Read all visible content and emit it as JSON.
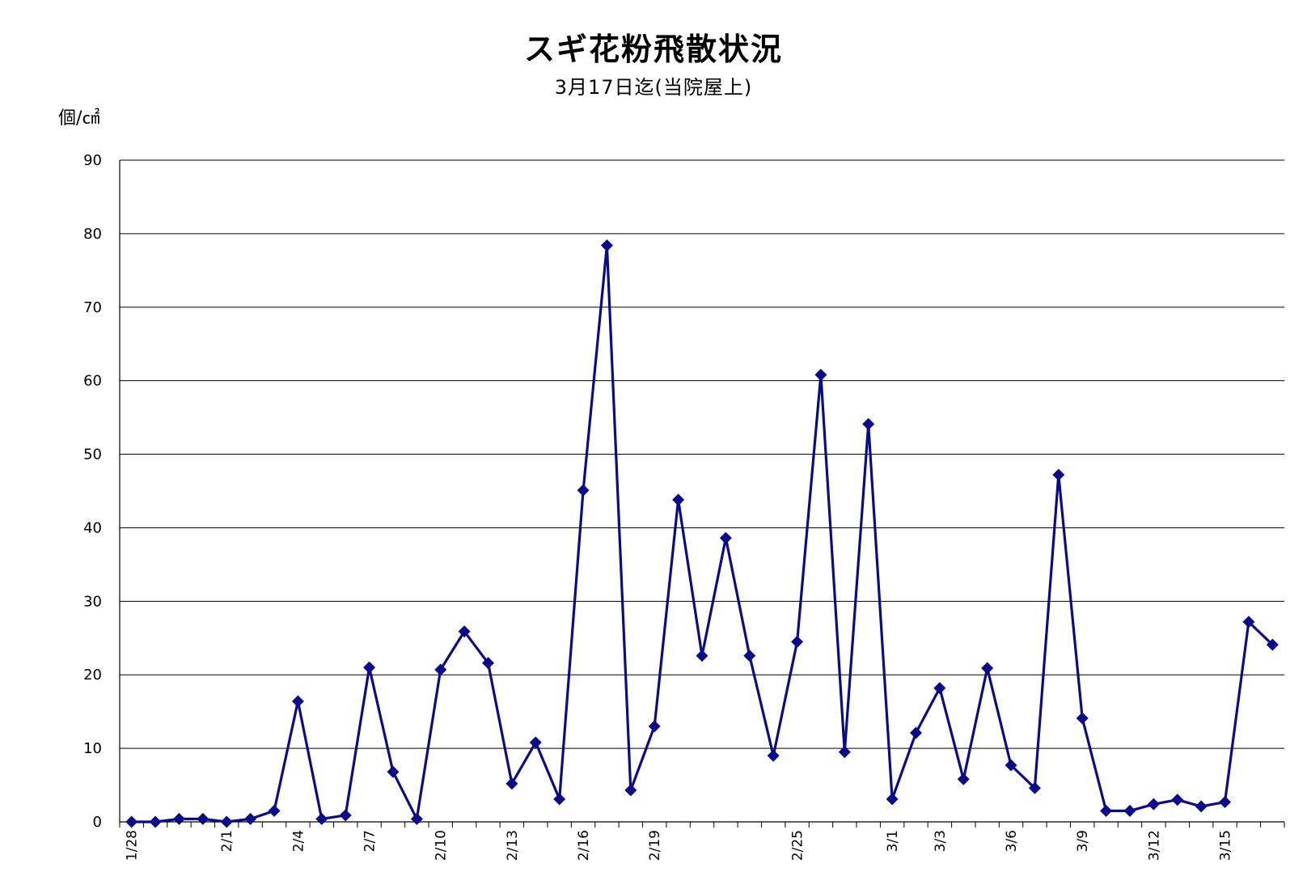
{
  "chart_data": {
    "type": "line",
    "title": "スギ花粉飛散状況",
    "subtitle": "3月17日迄(当院屋上)",
    "ylabel": "個/㎠",
    "xlabel": "",
    "ylim": [
      0,
      90
    ],
    "yticks": [
      0,
      10,
      20,
      30,
      40,
      50,
      60,
      70,
      80,
      90
    ],
    "grid": true,
    "line_color": "#0a0a8c",
    "x": [
      "1/28",
      "1/29",
      "1/30",
      "1/31",
      "2/1",
      "2/2",
      "2/3",
      "2/4",
      "2/5",
      "2/6",
      "2/7",
      "2/8",
      "2/9",
      "2/10",
      "2/11",
      "2/12",
      "2/13",
      "2/14",
      "2/15",
      "2/16",
      "2/17",
      "2/18",
      "2/19",
      "2/20",
      "2/21",
      "2/22",
      "2/23",
      "2/24",
      "2/25",
      "2/26",
      "2/27",
      "2/28",
      "3/1",
      "3/2",
      "3/3",
      "3/4",
      "3/5",
      "3/6",
      "3/7",
      "3/8",
      "3/9",
      "3/10",
      "3/11",
      "3/12",
      "3/13",
      "3/14",
      "3/15",
      "3/16",
      "3/17"
    ],
    "x_tick_labels": [
      {
        "index": 0,
        "label": "1/28"
      },
      {
        "index": 4,
        "label": "2/1"
      },
      {
        "index": 7,
        "label": "2/4"
      },
      {
        "index": 10,
        "label": "2/7"
      },
      {
        "index": 13,
        "label": "2/10"
      },
      {
        "index": 16,
        "label": "2/13"
      },
      {
        "index": 19,
        "label": "2/16"
      },
      {
        "index": 22,
        "label": "2/19"
      },
      {
        "index": 28,
        "label": "2/25"
      },
      {
        "index": 32,
        "label": "3/1"
      },
      {
        "index": 34,
        "label": "3/3"
      },
      {
        "index": 37,
        "label": "3/6"
      },
      {
        "index": 40,
        "label": "3/9"
      },
      {
        "index": 43,
        "label": "3/12"
      },
      {
        "index": 46,
        "label": "3/15"
      }
    ],
    "values": [
      0.0,
      0.0,
      0.4,
      0.4,
      0.0,
      0.4,
      1.5,
      16.4,
      0.4,
      0.9,
      21.0,
      6.8,
      0.4,
      20.7,
      25.9,
      21.6,
      5.2,
      10.8,
      3.1,
      45.1,
      78.4,
      4.3,
      13.0,
      43.8,
      22.6,
      38.6,
      22.6,
      9.0,
      24.5,
      60.8,
      9.5,
      54.1,
      3.1,
      12.1,
      18.2,
      5.8,
      20.9,
      7.7,
      4.6,
      47.2,
      14.1,
      1.5,
      1.5,
      2.4,
      3.0,
      2.1,
      2.7,
      27.2,
      24.1
    ]
  }
}
